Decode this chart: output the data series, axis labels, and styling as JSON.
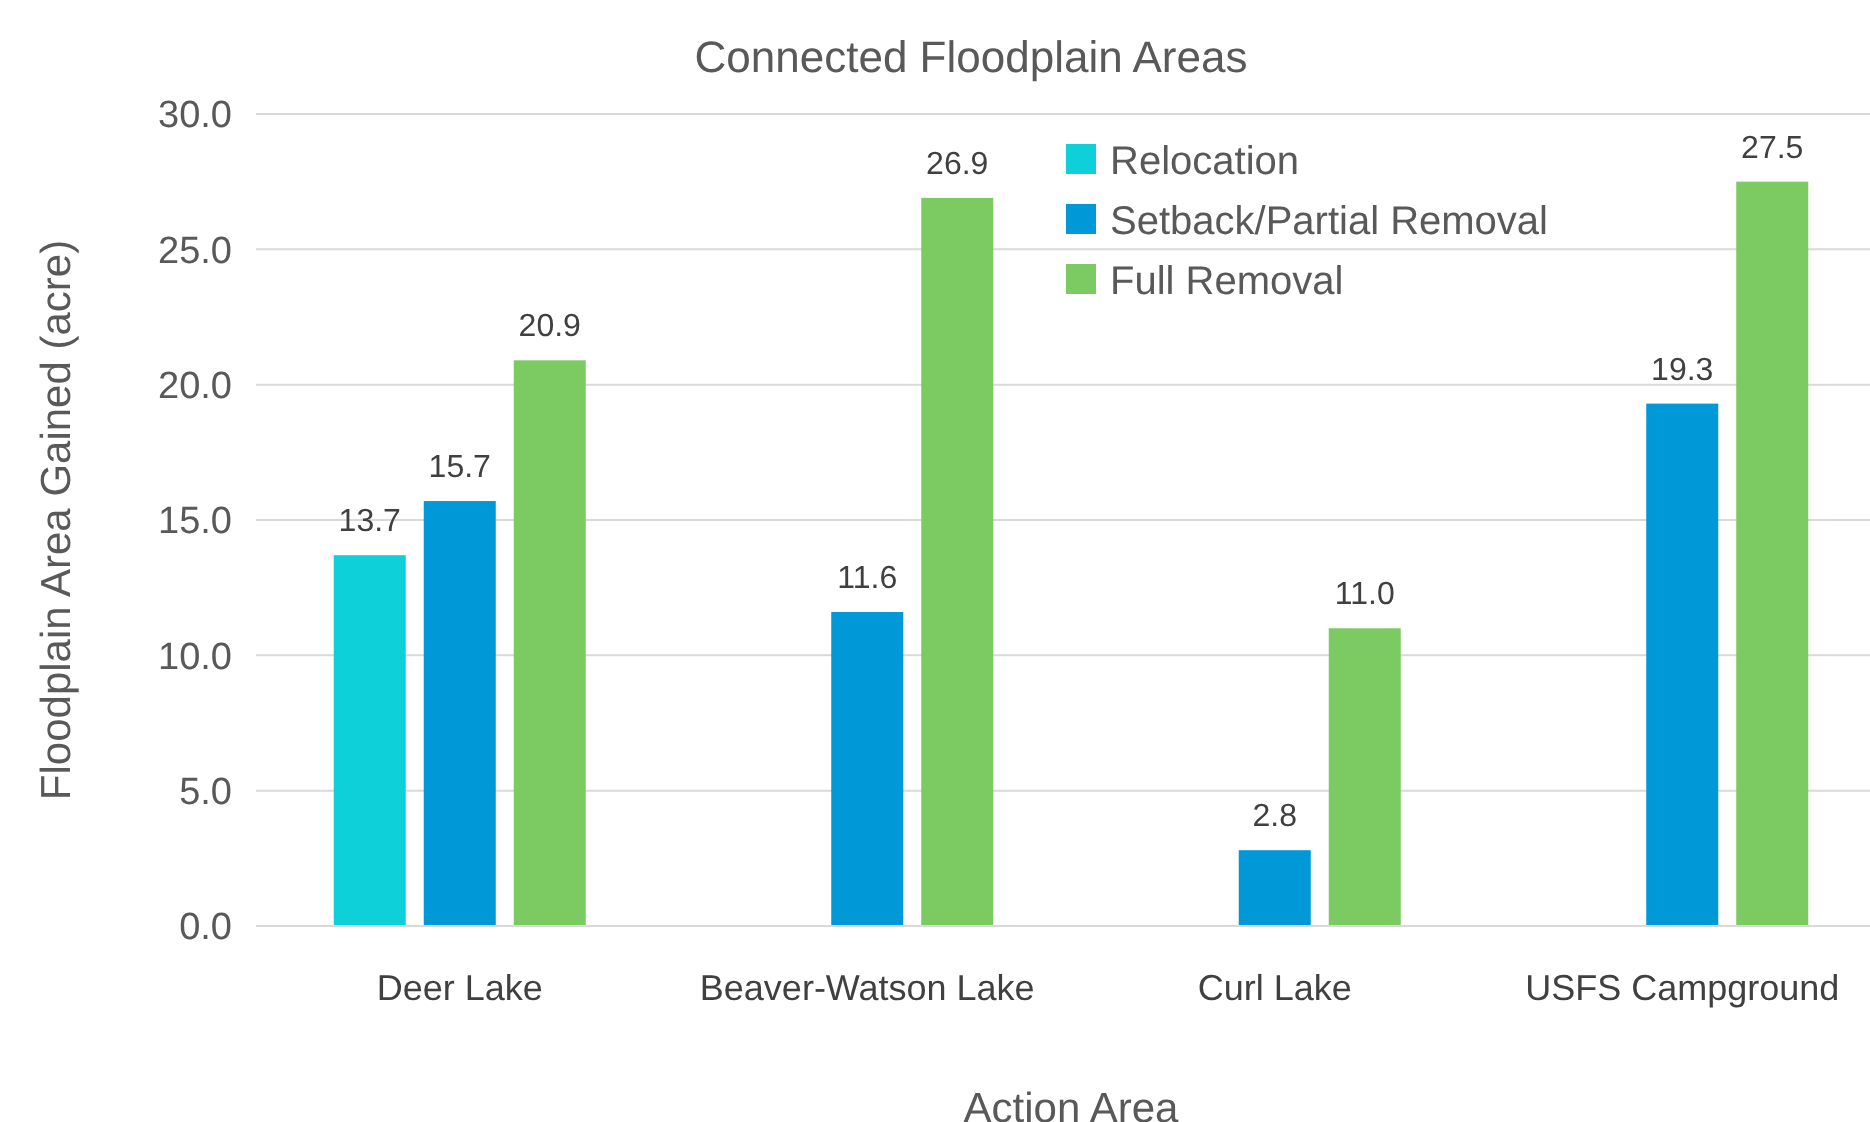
{
  "chart_data": {
    "type": "bar",
    "title": "Connected Floodplain Areas",
    "xlabel": "Action Area",
    "ylabel": "Floodplain Area Gained (acre)",
    "categories": [
      "Deer Lake",
      "Beaver-Watson Lake",
      "Curl Lake",
      "USFS Campground"
    ],
    "series": [
      {
        "name": "Relocation",
        "color": "#0dd0d8",
        "values": [
          13.7,
          null,
          null,
          null
        ],
        "value_labels": [
          "13.7",
          null,
          null,
          null
        ]
      },
      {
        "name": "Setback/Partial Removal",
        "color": "#0198d8",
        "values": [
          15.7,
          11.6,
          2.8,
          19.3
        ],
        "value_labels": [
          "15.7",
          "11.6",
          "2.8",
          "19.3"
        ]
      },
      {
        "name": "Full Removal",
        "color": "#7cca62",
        "values": [
          20.9,
          26.9,
          11.0,
          27.5
        ],
        "value_labels": [
          "20.9",
          "26.9",
          "11.0",
          "27.5"
        ]
      }
    ],
    "ylim": [
      0,
      30
    ],
    "yticks": [
      {
        "value": 0,
        "label": "0.0"
      },
      {
        "value": 5,
        "label": "5.0"
      },
      {
        "value": 10,
        "label": "10.0"
      },
      {
        "value": 15,
        "label": "15.0"
      },
      {
        "value": 20,
        "label": "20.0"
      },
      {
        "value": 25,
        "label": "25.0"
      },
      {
        "value": 30,
        "label": "30.0"
      }
    ],
    "grid": "y",
    "legend": "top right"
  }
}
